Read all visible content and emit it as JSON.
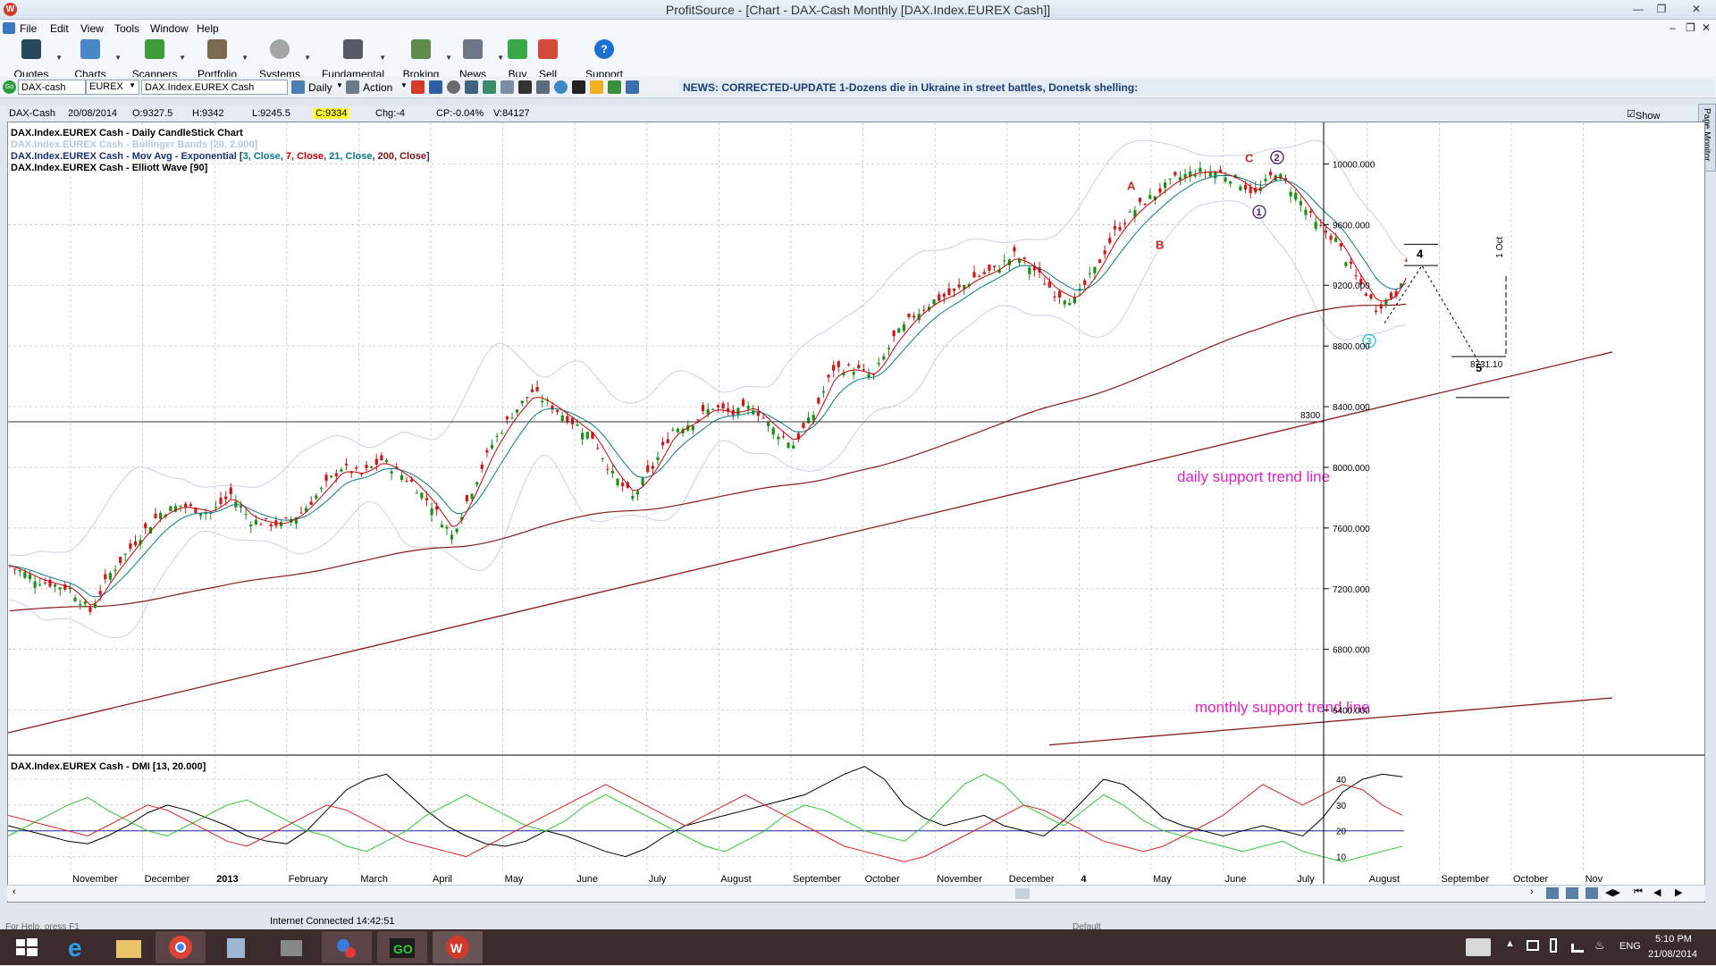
{
  "window": {
    "title": "ProfitSource - [Chart - DAX-Cash Monthly [DAX.Index.EUREX Cash]]",
    "app_icon": "ProfitSource-icon",
    "controls": [
      "minimize",
      "restore",
      "close"
    ]
  },
  "menu": {
    "items": [
      "File",
      "Edit",
      "View",
      "Tools",
      "Window",
      "Help"
    ]
  },
  "toolbar": {
    "buttons": [
      {
        "label": "Quotes",
        "icon": "quotes-icon"
      },
      {
        "label": "Charts",
        "icon": "charts-icon"
      },
      {
        "label": "Scanners",
        "icon": "scanners-icon"
      },
      {
        "label": "Portfolio",
        "icon": "portfolio-icon"
      },
      {
        "label": "Systems",
        "icon": "systems-icon"
      },
      {
        "label": "Fundamental",
        "icon": "fundamental-icon"
      },
      {
        "label": "Broking",
        "icon": "broking-icon"
      },
      {
        "label": "News",
        "icon": "news-icon"
      },
      {
        "label": "Buy",
        "icon": "buy-icon"
      },
      {
        "label": "Sell",
        "icon": "sell-icon"
      },
      {
        "label": "Support Center",
        "icon": "help-icon"
      }
    ]
  },
  "symbolbar": {
    "go_label": "Go",
    "symbol": "DAX-cash",
    "exchange": "EUREX",
    "description": "DAX.Index.EUREX Cash",
    "period": "Daily",
    "action": "Action",
    "news": "NEWS: CORRECTED-UPDATE 1-Dozens die in Ukraine in street battles, Donetsk shelling:"
  },
  "quote": {
    "symbol": "DAX-Cash",
    "date": "20/08/2014",
    "open": "O:9327.5",
    "high": "H:9342",
    "low": "L:9245.5",
    "close": "C:9334",
    "change": "Chg:-4",
    "change_pct": "CP:-0.04%",
    "volume": "V:84127",
    "show_last": "Show Last"
  },
  "page_monitor": "Page Monitor",
  "status": {
    "left": "For Help, press F1",
    "connection": "Internet Connected 14:42:51",
    "layout": "Default"
  },
  "taskbar": {
    "items": [
      "start-icon",
      "internet-explorer-icon",
      "file-explorer-icon",
      "chrome-icon",
      "calculator-icon",
      "grid-app-icon",
      "media-icon",
      "go-app-icon",
      "profitsource-icon"
    ],
    "lang": "ENG",
    "time": "5:10 PM",
    "date": "21/08/2014"
  },
  "chart_data": [
    {
      "type": "candlestick",
      "title": "DAX.Index.EUREX Cash - Daily CandleStick Chart",
      "indicators": [
        {
          "label": "DAX.Index.EUREX Cash - Bollinger Bands [20, 2.000]",
          "color": "#b9c8d8"
        },
        {
          "label_prefix": "DAX.Index.EUREX Cash - Mov Avg - Exponential [",
          "params": [
            {
              "text": "3, Close",
              "color": "#0a7a8a"
            },
            {
              "text": "7, Close",
              "color": "#cc0000"
            },
            {
              "text": "21, Close",
              "color": "#0a7a8a"
            },
            {
              "text": "200, Close",
              "color": "#7a1010"
            }
          ],
          "label_suffix": "]"
        },
        {
          "label": "DAX.Index.EUREX Cash - Elliott Wave [90]",
          "color": "#000000"
        }
      ],
      "x_ticks": [
        "November",
        "December",
        "2013",
        "February",
        "March",
        "April",
        "May",
        "June",
        "July",
        "August",
        "September",
        "October",
        "November",
        "December",
        "4",
        "May",
        "June",
        "July",
        "August",
        "September",
        "October",
        "Nov"
      ],
      "y_ticks": [
        10000,
        9600,
        9200,
        8800,
        8400,
        8000,
        7600,
        7200,
        6800,
        6400
      ],
      "y_tick_labels": [
        "10000.000",
        "9600.000",
        "9200.000",
        "8800.000",
        "8400.000",
        "8000.000",
        "7600.000",
        "7200.000",
        "6800.000",
        "6400.000"
      ],
      "ylim": [
        6150,
        10250
      ],
      "close_path": [
        [
          0,
          7350
        ],
        [
          6,
          7250
        ],
        [
          12,
          7200
        ],
        [
          16,
          7050
        ],
        [
          20,
          7300
        ],
        [
          26,
          7550
        ],
        [
          30,
          7700
        ],
        [
          34,
          7750
        ],
        [
          40,
          7700
        ],
        [
          44,
          7820
        ],
        [
          48,
          7650
        ],
        [
          54,
          7620
        ],
        [
          58,
          7700
        ],
        [
          62,
          7850
        ],
        [
          66,
          8000
        ],
        [
          70,
          7950
        ],
        [
          74,
          8050
        ],
        [
          80,
          7900
        ],
        [
          84,
          7750
        ],
        [
          88,
          7550
        ],
        [
          92,
          7850
        ],
        [
          96,
          8150
        ],
        [
          100,
          8350
        ],
        [
          104,
          8500
        ],
        [
          108,
          8400
        ],
        [
          112,
          8300
        ],
        [
          116,
          8200
        ],
        [
          120,
          7950
        ],
        [
          124,
          7800
        ],
        [
          128,
          8000
        ],
        [
          132,
          8250
        ],
        [
          136,
          8300
        ],
        [
          140,
          8400
        ],
        [
          144,
          8350
        ],
        [
          148,
          8400
        ],
        [
          152,
          8250
        ],
        [
          156,
          8150
        ],
        [
          160,
          8350
        ],
        [
          164,
          8650
        ],
        [
          168,
          8650
        ],
        [
          172,
          8600
        ],
        [
          176,
          8850
        ],
        [
          180,
          9000
        ],
        [
          184,
          9100
        ],
        [
          188,
          9150
        ],
        [
          192,
          9250
        ],
        [
          196,
          9300
        ],
        [
          200,
          9400
        ],
        [
          204,
          9300
        ],
        [
          208,
          9150
        ],
        [
          212,
          9100
        ],
        [
          216,
          9300
        ],
        [
          220,
          9550
        ],
        [
          224,
          9700
        ],
        [
          228,
          9800
        ],
        [
          232,
          9900
        ],
        [
          236,
          9950
        ],
        [
          240,
          9950
        ],
        [
          244,
          9900
        ],
        [
          248,
          9800
        ],
        [
          252,
          9950
        ],
        [
          256,
          9800
        ],
        [
          260,
          9600
        ],
        [
          264,
          9500
        ],
        [
          268,
          9250
        ],
        [
          272,
          9050
        ],
        [
          276,
          9150
        ],
        [
          278,
          9334
        ]
      ],
      "last_close": 9334,
      "horizontal_line": {
        "value": 8300,
        "label": "8300"
      },
      "elliott_labels": [
        {
          "text": "A",
          "color": "#cc2222"
        },
        {
          "text": "B",
          "color": "#cc2222"
        },
        {
          "text": "C",
          "color": "#cc2222"
        },
        {
          "text": "1",
          "color": "#4b1a73",
          "circled": true
        },
        {
          "text": "2",
          "color": "#4b1a73",
          "circled": true
        },
        {
          "text": "3",
          "color": "#22c2d8",
          "circled": true
        },
        {
          "text": "4",
          "color": "#000000"
        },
        {
          "text": "5",
          "color": "#000000"
        }
      ],
      "projection": {
        "target_label": "8731.10",
        "time_label": "1 Oct"
      },
      "annotations": [
        {
          "text": "daily support trend line",
          "color": "#e020c8"
        },
        {
          "text": "monthly support trend line",
          "color": "#e020c8"
        }
      ]
    },
    {
      "type": "line",
      "title": "DAX.Index.EUREX Cash - DMI [13, 20.000]",
      "y_ticks": [
        10,
        20,
        30,
        40
      ],
      "threshold": 20,
      "ylim": [
        5,
        48
      ],
      "series": [
        {
          "color": "#000000",
          "values": [
            22,
            20,
            18,
            16,
            15,
            18,
            22,
            27,
            30,
            28,
            25,
            22,
            18,
            16,
            15,
            20,
            28,
            36,
            40,
            42,
            35,
            28,
            22,
            18,
            15,
            14,
            16,
            20,
            18,
            15,
            12,
            10,
            13,
            18,
            22,
            24,
            26,
            28,
            30,
            32,
            34,
            38,
            42,
            45,
            40,
            30,
            25,
            22,
            24,
            26,
            22,
            20,
            18,
            24,
            32,
            40,
            38,
            32,
            25,
            22,
            20,
            18,
            20,
            22,
            20,
            18,
            25,
            35,
            40,
            42,
            41
          ]
        },
        {
          "color": "#2ecc2e",
          "values": [
            18,
            22,
            26,
            30,
            33,
            28,
            24,
            20,
            18,
            22,
            26,
            30,
            32,
            28,
            24,
            20,
            18,
            14,
            12,
            16,
            20,
            26,
            30,
            34,
            30,
            26,
            22,
            20,
            24,
            30,
            34,
            30,
            26,
            22,
            18,
            14,
            12,
            16,
            20,
            26,
            30,
            28,
            24,
            20,
            18,
            16,
            22,
            30,
            38,
            42,
            38,
            30,
            26,
            22,
            28,
            34,
            30,
            24,
            20,
            18,
            16,
            14,
            12,
            14,
            16,
            12,
            10,
            8,
            10,
            12,
            14
          ]
        },
        {
          "color": "#dd2222",
          "values": [
            26,
            24,
            22,
            20,
            18,
            22,
            26,
            30,
            28,
            24,
            20,
            16,
            14,
            18,
            22,
            26,
            30,
            28,
            24,
            20,
            16,
            14,
            12,
            10,
            14,
            18,
            22,
            26,
            30,
            34,
            38,
            34,
            30,
            26,
            22,
            26,
            30,
            34,
            30,
            26,
            22,
            18,
            14,
            12,
            10,
            8,
            10,
            14,
            18,
            22,
            26,
            30,
            28,
            24,
            20,
            16,
            14,
            12,
            14,
            18,
            22,
            26,
            32,
            38,
            34,
            30,
            34,
            38,
            36,
            30,
            26
          ]
        }
      ]
    }
  ]
}
